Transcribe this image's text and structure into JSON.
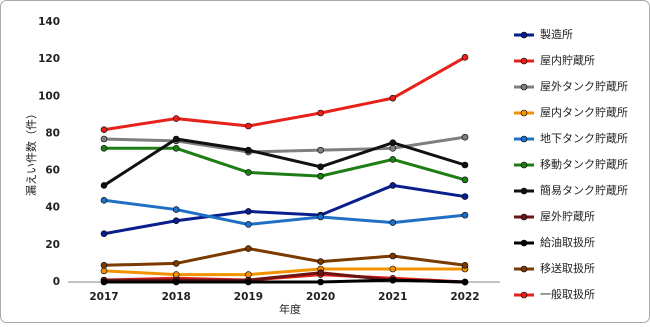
{
  "chart_data": {
    "type": "line",
    "x_label": "年度",
    "y_label": "漏えい件数（件）",
    "categories": [
      "2017",
      "2018",
      "2019",
      "2020",
      "2021",
      "2022"
    ],
    "ylim": [
      0,
      140
    ],
    "yticks": [
      0,
      20,
      40,
      60,
      80,
      100,
      120,
      140
    ],
    "grid": false,
    "legend": "right",
    "series": [
      {
        "name": "製造所",
        "color": "#0a1e8c",
        "values": [
          26,
          33,
          38,
          36,
          52,
          46
        ]
      },
      {
        "name": "屋内貯蔵所",
        "color": "#e8201a",
        "values": [
          1,
          2,
          1,
          4,
          2,
          0
        ]
      },
      {
        "name": "屋外タンク貯蔵所",
        "color": "#7f7f7f",
        "values": [
          77,
          76,
          70,
          71,
          72,
          78
        ]
      },
      {
        "name": "屋内タンク貯蔵所",
        "color": "#f39200",
        "values": [
          6,
          4,
          4,
          7,
          7,
          7
        ]
      },
      {
        "name": "地下タンク貯蔵所",
        "color": "#1f6fc5",
        "values": [
          44,
          39,
          31,
          35,
          32,
          36
        ]
      },
      {
        "name": "移動タンク貯蔵所",
        "color": "#1e7d14",
        "values": [
          72,
          72,
          59,
          57,
          66,
          55
        ]
      },
      {
        "name": "簡易タンク貯蔵所",
        "color": "#111111",
        "values": [
          52,
          77,
          71,
          62,
          75,
          63
        ]
      },
      {
        "name": "屋外貯蔵所",
        "color": "#6b1414",
        "values": [
          1,
          1,
          1,
          5,
          1,
          0
        ]
      },
      {
        "name": "給油取扱所",
        "color": "#000000",
        "values": [
          0,
          0,
          0,
          0,
          1,
          0
        ]
      },
      {
        "name": "移送取扱所",
        "color": "#7a3a00",
        "values": [
          9,
          10,
          18,
          11,
          14,
          9
        ]
      },
      {
        "name": "一般取扱所",
        "color": "#e8201a",
        "values": [
          82,
          88,
          84,
          91,
          99,
          121
        ]
      }
    ]
  }
}
